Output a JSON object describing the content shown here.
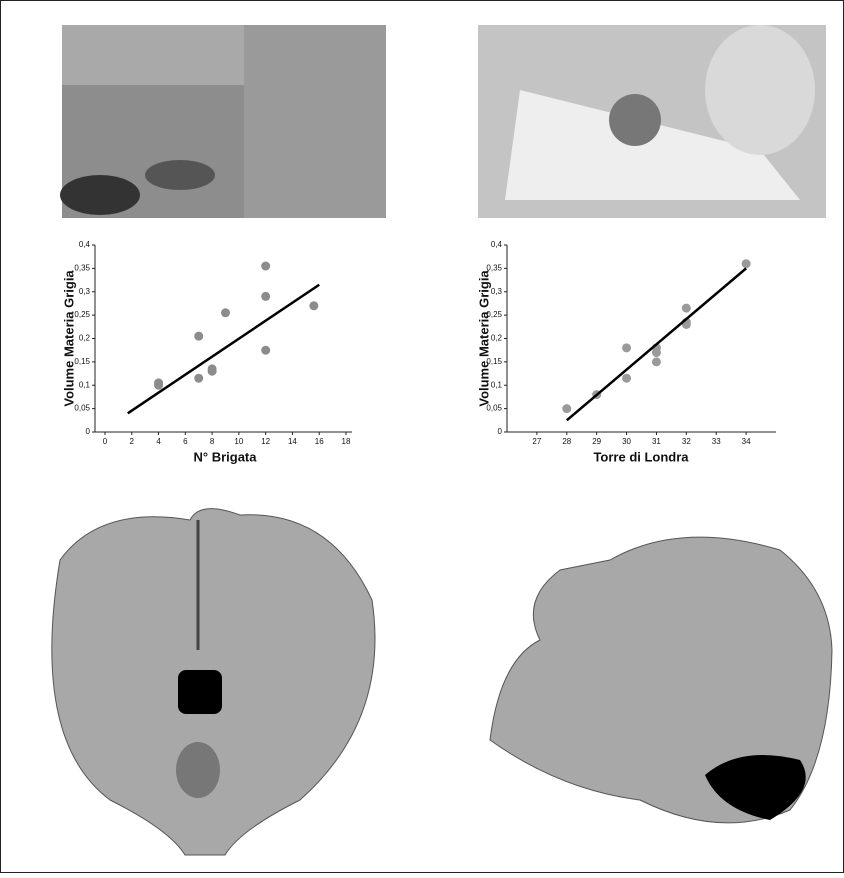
{
  "chart_data": [
    {
      "type": "scatter",
      "xlabel": "N° Brigata",
      "ylabel": "Volume Materia Grigia",
      "xlim": [
        0,
        18
      ],
      "xticks": [
        0,
        2,
        4,
        6,
        8,
        10,
        12,
        14,
        16,
        18
      ],
      "ylim": [
        0,
        0.4
      ],
      "yticks": [
        0,
        {
          "value": 0.05,
          "label": "0,05"
        },
        {
          "value": 0.1,
          "label": "0,1"
        },
        {
          "value": 0.15,
          "label": "0,15"
        },
        {
          "value": 0.2,
          "label": "0,2"
        },
        {
          "value": 0.25,
          "label": "0,25"
        },
        {
          "value": 0.3,
          "label": "0,3"
        },
        {
          "value": 0.35,
          "label": "0,35"
        },
        {
          "value": 0.4,
          "label": "0,4"
        }
      ],
      "series": [
        {
          "color": "#8c8c8c",
          "x": [
            4,
            4,
            7,
            7,
            8,
            8,
            9,
            12,
            12,
            12,
            15.6
          ],
          "values": [
            0.105,
            0.1,
            0.205,
            0.115,
            0.135,
            0.13,
            0.255,
            0.355,
            0.29,
            0.175,
            0.27
          ]
        }
      ],
      "fit_line": {
        "color": "#000000",
        "x": [
          1.7,
          16
        ],
        "values": [
          0.04,
          0.315
        ]
      }
    },
    {
      "type": "scatter",
      "xlabel": "Torre di Londra",
      "ylabel": "Volume Materia Grigia",
      "xlim": [
        26,
        35
      ],
      "xticks": [
        27,
        28,
        29,
        30,
        31,
        32,
        33,
        34
      ],
      "ylim": [
        0,
        0.4
      ],
      "yticks": [
        0,
        {
          "value": 0.05,
          "label": "0,05"
        },
        {
          "value": 0.1,
          "label": "0,1"
        },
        {
          "value": 0.15,
          "label": "0,15"
        },
        {
          "value": 0.2,
          "label": "0,2"
        },
        {
          "value": 0.25,
          "label": "0,25"
        },
        {
          "value": 0.3,
          "label": "0,3"
        },
        {
          "value": 0.35,
          "label": "0,35"
        },
        {
          "value": 0.4,
          "label": "0,4"
        }
      ],
      "series": [
        {
          "color": "#9a9a9a",
          "x": [
            28,
            29,
            30,
            30,
            31,
            31,
            31,
            32,
            32,
            32,
            34
          ],
          "values": [
            0.05,
            0.08,
            0.18,
            0.115,
            0.18,
            0.17,
            0.15,
            0.265,
            0.235,
            0.23,
            0.36
          ]
        }
      ],
      "fit_line": {
        "color": "#000000",
        "x": [
          28,
          34
        ],
        "values": [
          0.025,
          0.35
        ]
      }
    }
  ]
}
